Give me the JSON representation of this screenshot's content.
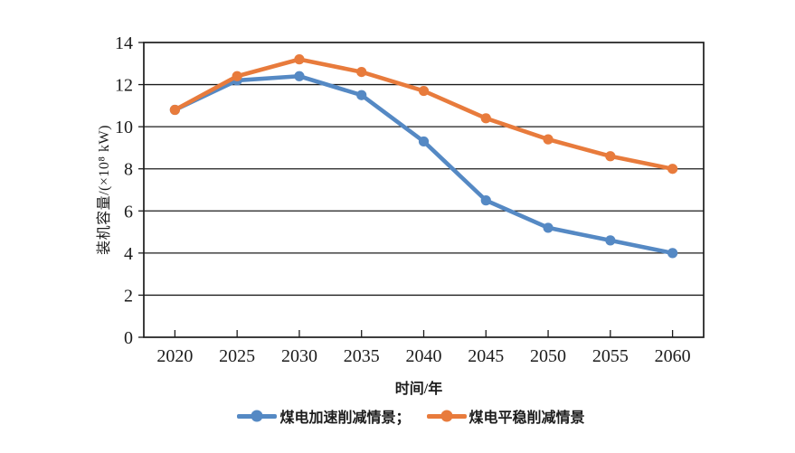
{
  "chart_data": {
    "type": "line",
    "title": "",
    "categories": [
      "2020",
      "2025",
      "2030",
      "2035",
      "2040",
      "2045",
      "2050",
      "2055",
      "2060"
    ],
    "series": [
      {
        "key": "accelerated",
        "name": "煤电加速削减情景",
        "legend_label": "煤电加速削减情景；",
        "color": "#5589c4",
        "values": [
          10.8,
          12.2,
          12.4,
          11.5,
          9.3,
          6.5,
          5.2,
          4.6,
          4.0
        ]
      },
      {
        "key": "steady",
        "name": "煤电平稳削减情景",
        "legend_label": "煤电平稳削减情景",
        "color": "#e87b3c",
        "values": [
          10.8,
          12.4,
          13.2,
          12.6,
          11.7,
          10.4,
          9.4,
          8.6,
          8.0
        ]
      }
    ],
    "xlabel": "时间/年",
    "ylabel": "装机容量/(×10⁸ kW)",
    "ylim": [
      0,
      14
    ],
    "ytick_step": 2,
    "yticks": [
      0,
      2,
      4,
      6,
      8,
      10,
      12,
      14
    ],
    "grid": "horizontal",
    "legend_position": "bottom",
    "axis_color": "#1c1c1c",
    "background_color": "#ffffff"
  }
}
